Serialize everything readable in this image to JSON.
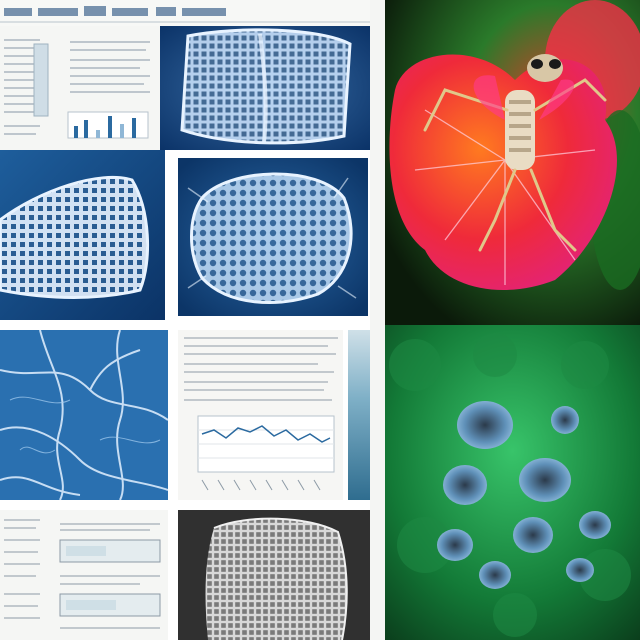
{
  "collage": {
    "title": "",
    "palette": {
      "cyanotype_dark": "#0e3f7a",
      "cyanotype_light": "#cfe6ff",
      "paper": "#f7f8f6",
      "petal_red": "#e5332c",
      "petal_pink": "#e6267a",
      "leaf_green": "#1f7a2e",
      "cell_green": "#1aa34a",
      "cell_blue": "#7fb3d6"
    },
    "tiles": [
      {
        "id": "doc-top-left",
        "kind": "document-with-bar-chart"
      },
      {
        "id": "cyanotype-mesh-top",
        "kind": "cyanotype-specimen"
      },
      {
        "id": "flower-insect",
        "kind": "flower-with-insect"
      },
      {
        "id": "cyanotype-mesh-left",
        "kind": "cyanotype-specimen"
      },
      {
        "id": "cyanotype-mesh-center",
        "kind": "cyanotype-specimen"
      },
      {
        "id": "cyanotype-veins",
        "kind": "cyanotype-specimen"
      },
      {
        "id": "doc-line-chart",
        "kind": "document-with-line-chart"
      },
      {
        "id": "green-cells",
        "kind": "micrograph"
      },
      {
        "id": "doc-bottom-left",
        "kind": "document-with-tables"
      },
      {
        "id": "grey-mesh",
        "kind": "greyscale-specimen"
      }
    ]
  }
}
